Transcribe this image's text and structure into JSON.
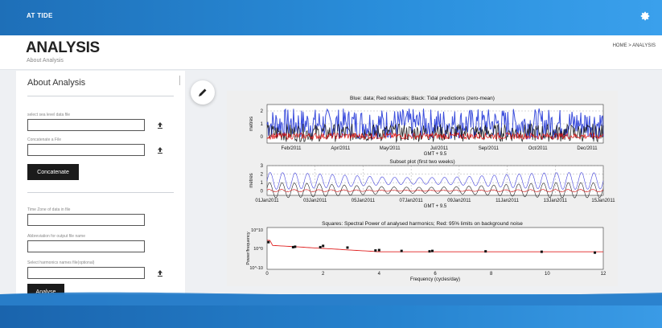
{
  "topbar": {
    "brand": "AT TIDE",
    "settings_icon": "gear-icon"
  },
  "header": {
    "title": "ANALYSIS",
    "subtitle": "About Analysis",
    "breadcrumb": "HOME > ANALYSIS"
  },
  "form": {
    "heading": "About Analysis",
    "sea_level_label": "select sea level data file",
    "concatenate_label": "Concatenate a File",
    "concatenate_button": "Concatenate",
    "timezone_label": "Time Zone of data in file",
    "abbreviation_label": "Abbreviation for output file name",
    "harmonics_label": "Select harmonics names file(optional)",
    "analyse_button": "Analyse",
    "upload_icon": "upload-icon"
  },
  "edit_icon": "pencil-icon",
  "chart_data": [
    {
      "type": "line",
      "title": "Blue: data; Red residuals; Black: Tidal predictions (zero-mean)",
      "ylabel": "metres",
      "xlabel": "GMT + 9.5",
      "ylim": [
        -0.5,
        2.5
      ],
      "yticks": [
        "2",
        "1",
        "0"
      ],
      "xticks": [
        "Feb/2011",
        "Apr/2011",
        "May/2011",
        "Jul/2011",
        "Sep/2011",
        "Oct/2011",
        "Dec/2011"
      ],
      "series": [
        {
          "color": "#1a2fd6",
          "range": [
            -0.2,
            2.2
          ]
        },
        {
          "color": "#111111",
          "range": [
            -0.4,
            1.0
          ]
        },
        {
          "color": "#e01010",
          "range": [
            -0.2,
            0.3
          ]
        }
      ]
    },
    {
      "type": "line",
      "title": "Subset plot (first two weeks)",
      "ylabel": "metres",
      "xlabel": "GMT + 9.5",
      "ylim": [
        -0.5,
        3
      ],
      "yticks": [
        "3",
        "2",
        "1",
        "0"
      ],
      "xticks": [
        "01Jan2011",
        "03Jan2011",
        "05Jan2011",
        "07Jan2011",
        "09Jan2011",
        "11Jan2011",
        "13Jan2011",
        "15Jan2011"
      ],
      "series": [
        {
          "color": "#4444dd",
          "amplitude": 1.0,
          "mean": 1.2
        },
        {
          "color": "#222222",
          "amplitude": 0.9,
          "mean": 0.1
        },
        {
          "color": "#e01010",
          "amplitude": 0.15,
          "mean": 0.05
        }
      ]
    },
    {
      "type": "scatter",
      "title": "Squares: Spectral Power of analysed harmonics; Red: 95% limits on background noise",
      "xlabel": "Frequency (cycles/day)",
      "ylabel": "Power/frequency",
      "ylim_labels": [
        "10^10",
        "10^0",
        "10^-10"
      ],
      "xticks": [
        "0",
        "2",
        "4",
        "6",
        "8",
        "10",
        "12"
      ],
      "xlim": [
        0,
        12
      ],
      "noise_line_color": "#e02020"
    }
  ]
}
